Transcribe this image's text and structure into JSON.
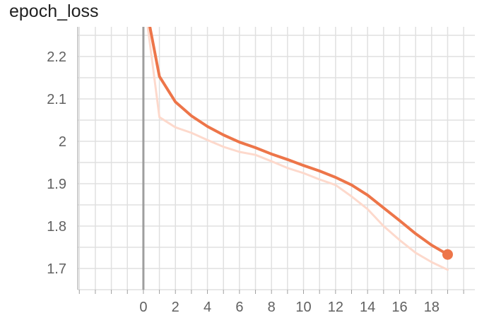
{
  "title": "epoch_loss",
  "colors": {
    "smoothed": "#ED7549",
    "raw": "#FDD9CC",
    "grid": "#E0E0E0",
    "axis": "#9E9E9E",
    "zero_line": "#9E9E9E"
  },
  "chart_data": {
    "type": "line",
    "title": "epoch_loss",
    "xlabel": "",
    "ylabel": "",
    "xlim": [
      -4.1,
      20.7
    ],
    "ylim": [
      1.65,
      2.27
    ],
    "x_ticks": [
      0,
      2,
      4,
      6,
      8,
      10,
      12,
      14,
      16,
      18
    ],
    "y_ticks": [
      1.7,
      1.8,
      1.9,
      2,
      2.1,
      2.2
    ],
    "x_tick_labels": [
      "0",
      "2",
      "4",
      "6",
      "8",
      "10",
      "12",
      "14",
      "16",
      "18"
    ],
    "y_tick_labels": [
      "1.7",
      "1.8",
      "1.9",
      "2",
      "2.1",
      "2.2"
    ],
    "grid": true,
    "series": [
      {
        "x": [
          0,
          1,
          2,
          3,
          4,
          5,
          6,
          7,
          8,
          9,
          10,
          11,
          12,
          13,
          14,
          15,
          16,
          17,
          18,
          19
        ],
        "values": [
          2.35,
          2.057,
          2.033,
          2.02,
          2.003,
          1.987,
          1.975,
          1.968,
          1.953,
          1.937,
          1.925,
          1.91,
          1.897,
          1.87,
          1.84,
          1.8,
          1.767,
          1.737,
          1.715,
          1.697
        ],
        "style": "raw"
      },
      {
        "x": [
          0,
          1,
          2,
          3,
          4,
          5,
          6,
          7,
          8,
          9,
          10,
          11,
          12,
          13,
          14,
          15,
          16,
          17,
          18,
          19
        ],
        "values": [
          2.35,
          2.153,
          2.093,
          2.06,
          2.035,
          2.015,
          1.998,
          1.985,
          1.97,
          1.957,
          1.943,
          1.93,
          1.915,
          1.897,
          1.873,
          1.843,
          1.813,
          1.782,
          1.755,
          1.733
        ],
        "style": "smoothed",
        "highlight_last": true
      }
    ]
  }
}
